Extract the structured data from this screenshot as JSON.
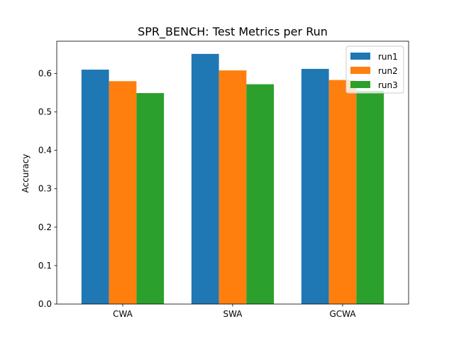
{
  "chart_data": {
    "type": "bar",
    "title": "SPR_BENCH: Test Metrics per Run",
    "xlabel": "",
    "ylabel": "Accuracy",
    "categories": [
      "CWA",
      "SWA",
      "GCWA"
    ],
    "series": [
      {
        "name": "run1",
        "values": [
          0.61,
          0.651,
          0.612
        ],
        "color": "#1f77b4"
      },
      {
        "name": "run2",
        "values": [
          0.58,
          0.608,
          0.583
        ],
        "color": "#ff7f0e"
      },
      {
        "name": "run3",
        "values": [
          0.549,
          0.572,
          0.555
        ],
        "color": "#2ca02c"
      }
    ],
    "ylim": [
      0,
      0.684
    ],
    "yticks": [
      0.0,
      0.1,
      0.2,
      0.3,
      0.4,
      0.5,
      0.6
    ],
    "ytick_labels": [
      "0.0",
      "0.1",
      "0.2",
      "0.3",
      "0.4",
      "0.5",
      "0.6"
    ],
    "grid": false,
    "legend_position": "top-right"
  }
}
